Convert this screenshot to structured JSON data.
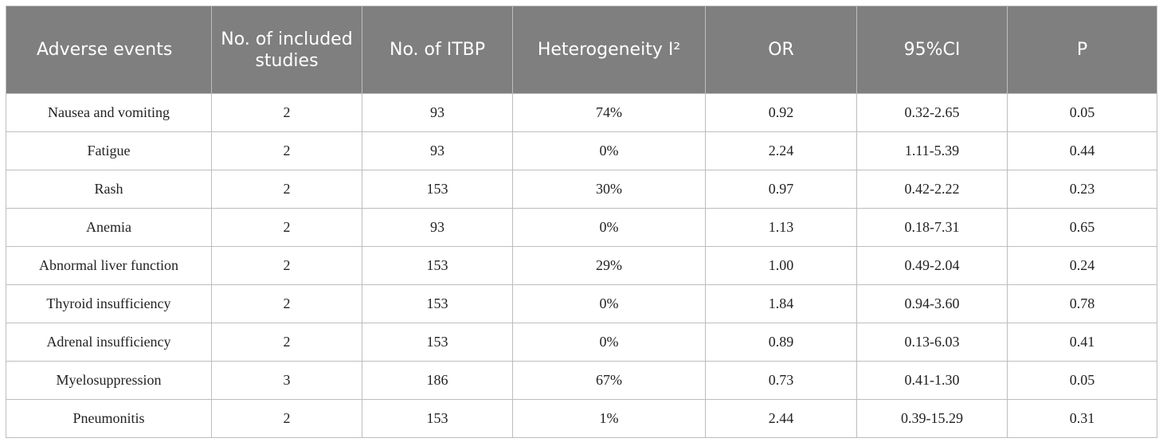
{
  "table": {
    "header": [
      "Adverse events",
      "No. of included studies",
      "No. of ITBP",
      "Heterogeneity I²",
      "OR",
      "95%CI",
      "P"
    ],
    "rows": [
      [
        "Nausea and vomiting",
        "2",
        "93",
        "74%",
        "0.92",
        "0.32-2.65",
        "0.05"
      ],
      [
        "Fatigue",
        "2",
        "93",
        "0%",
        "2.24",
        "1.11-5.39",
        "0.44"
      ],
      [
        "Rash",
        "2",
        "153",
        "30%",
        "0.97",
        "0.42-2.22",
        "0.23"
      ],
      [
        "Anemia",
        "2",
        "93",
        "0%",
        "1.13",
        "0.18-7.31",
        "0.65"
      ],
      [
        "Abnormal liver function",
        "2",
        "153",
        "29%",
        "1.00",
        "0.49-2.04",
        "0.24"
      ],
      [
        "Thyroid insufficiency",
        "2",
        "153",
        "0%",
        "1.84",
        "0.94-3.60",
        "0.78"
      ],
      [
        "Adrenal insufficiency",
        "2",
        "153",
        "0%",
        "0.89",
        "0.13-6.03",
        "0.41"
      ],
      [
        "Myelosuppression",
        "3",
        "186",
        "67%",
        "0.73",
        "0.41-1.30",
        "0.05"
      ],
      [
        "Pneumonitis",
        "2",
        "153",
        "1%",
        "2.44",
        "0.39-15.29",
        "0.31"
      ]
    ]
  }
}
